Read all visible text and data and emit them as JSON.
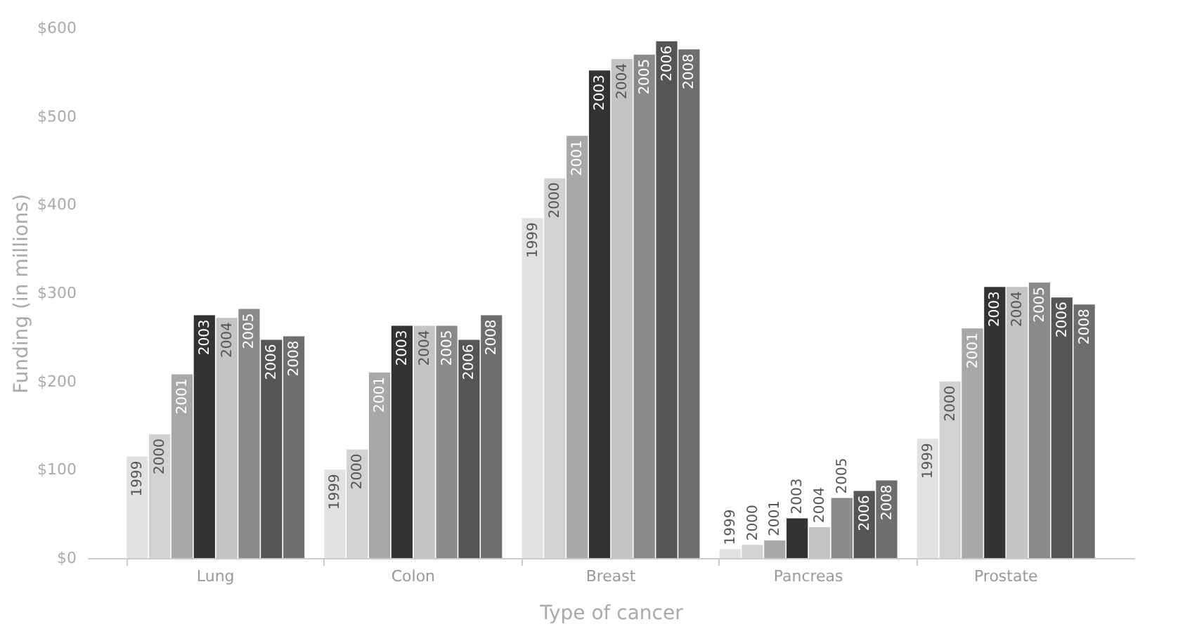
{
  "chart_data": {
    "type": "bar",
    "xlabel": "Type of cancer",
    "ylabel": "Funding (in millions)",
    "categories": [
      "Lung",
      "Colon",
      "Breast",
      "Pancreas",
      "Prostate"
    ],
    "ylim": [
      0,
      600
    ],
    "yticks": [
      {
        "value": 0,
        "label": "$0"
      },
      {
        "value": 100,
        "label": "$100"
      },
      {
        "value": 200,
        "label": "$200"
      },
      {
        "value": 300,
        "label": "$300"
      },
      {
        "value": 400,
        "label": "$400"
      },
      {
        "value": 500,
        "label": "$500"
      },
      {
        "value": 600,
        "label": "$600"
      }
    ],
    "grid": false,
    "legend": false,
    "series": [
      {
        "name": "1999",
        "color": "#e2e2e2",
        "values": [
          115,
          100,
          385,
          10,
          135
        ]
      },
      {
        "name": "2000",
        "color": "#d2d2d2",
        "values": [
          140,
          123,
          430,
          15,
          200
        ]
      },
      {
        "name": "2001",
        "color": "#a8a8a8",
        "values": [
          208,
          210,
          478,
          20,
          260
        ]
      },
      {
        "name": "2003",
        "color": "#333333",
        "values": [
          275,
          263,
          552,
          45,
          307
        ]
      },
      {
        "name": "2004",
        "color": "#c4c4c4",
        "values": [
          272,
          263,
          565,
          35,
          307
        ]
      },
      {
        "name": "2005",
        "color": "#8a8a8a",
        "values": [
          282,
          263,
          570,
          68,
          312
        ]
      },
      {
        "name": "2006",
        "color": "#555555",
        "values": [
          247,
          247,
          585,
          76,
          295
        ]
      },
      {
        "name": "2008",
        "color": "#6e6e6e",
        "values": [
          251,
          275,
          576,
          88,
          287
        ]
      }
    ]
  }
}
